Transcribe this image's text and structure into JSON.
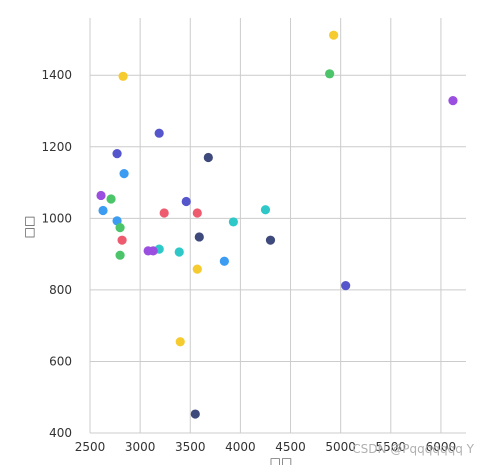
{
  "chart_data": {
    "type": "scatter",
    "xlabel": "□□",
    "ylabel": "□□",
    "xlim": [
      2500,
      6250
    ],
    "ylim": [
      400,
      1560
    ],
    "x_ticks": [
      2500,
      3000,
      3500,
      4000,
      4500,
      5000,
      5500,
      6000
    ],
    "y_ticks": [
      400,
      600,
      800,
      1000,
      1200,
      1400
    ],
    "grid": true,
    "points": [
      {
        "x": 2830,
        "y": 1397,
        "color": "#f6cb2f"
      },
      {
        "x": 4930,
        "y": 1512,
        "color": "#f6cb2f"
      },
      {
        "x": 4890,
        "y": 1404,
        "color": "#4bc46a"
      },
      {
        "x": 6120,
        "y": 1329,
        "color": "#9b4fe0"
      },
      {
        "x": 3190,
        "y": 1238,
        "color": "#5656cc"
      },
      {
        "x": 2770,
        "y": 1181,
        "color": "#5656cc"
      },
      {
        "x": 3680,
        "y": 1170,
        "color": "#3e4a7c"
      },
      {
        "x": 2840,
        "y": 1125,
        "color": "#3b9cf2"
      },
      {
        "x": 2610,
        "y": 1064,
        "color": "#9b4fe0"
      },
      {
        "x": 2710,
        "y": 1054,
        "color": "#4bc46a"
      },
      {
        "x": 3460,
        "y": 1047,
        "color": "#5656cc"
      },
      {
        "x": 2630,
        "y": 1022,
        "color": "#3b9cf2"
      },
      {
        "x": 4250,
        "y": 1024,
        "color": "#2ec8c8"
      },
      {
        "x": 3240,
        "y": 1015,
        "color": "#ee5b6e"
      },
      {
        "x": 3570,
        "y": 1015,
        "color": "#ee5b6e"
      },
      {
        "x": 2770,
        "y": 993,
        "color": "#3b9cf2"
      },
      {
        "x": 3930,
        "y": 990,
        "color": "#2ec8c8"
      },
      {
        "x": 2800,
        "y": 974,
        "color": "#4bc46a"
      },
      {
        "x": 3590,
        "y": 948,
        "color": "#3e4a7c"
      },
      {
        "x": 2820,
        "y": 939,
        "color": "#ee5b6e"
      },
      {
        "x": 4300,
        "y": 939,
        "color": "#3e4a7c"
      },
      {
        "x": 3190,
        "y": 914,
        "color": "#2ec8c8"
      },
      {
        "x": 3080,
        "y": 909,
        "color": "#9b4fe0"
      },
      {
        "x": 3130,
        "y": 909,
        "color": "#9b4fe0"
      },
      {
        "x": 3390,
        "y": 906,
        "color": "#2ec8c8"
      },
      {
        "x": 2800,
        "y": 897,
        "color": "#4bc46a"
      },
      {
        "x": 3840,
        "y": 880,
        "color": "#3b9cf2"
      },
      {
        "x": 3570,
        "y": 858,
        "color": "#f6cb2f"
      },
      {
        "x": 5050,
        "y": 812,
        "color": "#5656cc"
      },
      {
        "x": 3400,
        "y": 655,
        "color": "#f6cb2f"
      },
      {
        "x": 3550,
        "y": 453,
        "color": "#3e4a7c"
      }
    ]
  },
  "watermark": "CSDN @Pqqqqqqq Y"
}
